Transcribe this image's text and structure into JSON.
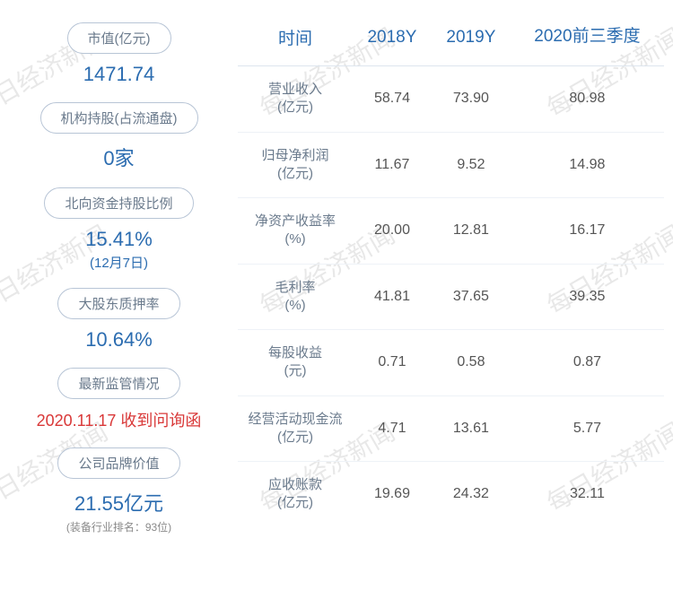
{
  "watermark_text": "每日经济新闻",
  "left": {
    "metrics": [
      {
        "label": "市值(亿元)",
        "value": "1471.74",
        "sub": "",
        "note": "",
        "red": false
      },
      {
        "label": "机构持股(占流通盘)",
        "value": "0家",
        "sub": "",
        "note": "",
        "red": false
      },
      {
        "label": "北向资金持股比例",
        "value": "15.41%",
        "sub": "(12月7日)",
        "note": "",
        "red": false
      },
      {
        "label": "大股东质押率",
        "value": "10.64%",
        "sub": "",
        "note": "",
        "red": false
      },
      {
        "label": "最新监管情况",
        "value": "2020.11.17 收到问询函",
        "sub": "",
        "note": "",
        "red": true
      },
      {
        "label": "公司品牌价值",
        "value": "21.55亿元",
        "sub": "",
        "note": "(装备行业排名：93位)",
        "red": false
      }
    ]
  },
  "table": {
    "columns": [
      "时间",
      "2018Y",
      "2019Y",
      "2020前三季度"
    ],
    "rows": [
      {
        "label": "营业收入\n(亿元)",
        "cells": [
          "58.74",
          "73.90",
          "80.98"
        ]
      },
      {
        "label": "归母净利润\n(亿元)",
        "cells": [
          "11.67",
          "9.52",
          "14.98"
        ]
      },
      {
        "label": "净资产收益率\n(%)",
        "cells": [
          "20.00",
          "12.81",
          "16.17"
        ]
      },
      {
        "label": "毛利率\n(%)",
        "cells": [
          "41.81",
          "37.65",
          "39.35"
        ]
      },
      {
        "label": "每股收益\n(元)",
        "cells": [
          "0.71",
          "0.58",
          "0.87"
        ]
      },
      {
        "label": "经营活动现金流\n(亿元)",
        "cells": [
          "4.71",
          "13.61",
          "5.77"
        ]
      },
      {
        "label": "应收账款\n(亿元)",
        "cells": [
          "19.69",
          "24.32",
          "32.11"
        ]
      }
    ]
  },
  "styles": {
    "header_color": "#2b6cb0",
    "pill_border": "#b8c5d6",
    "value_color": "#2b6cb0",
    "red_color": "#d93838",
    "row_border": "#eef2f7",
    "label_gray": "#6a7a8c"
  }
}
